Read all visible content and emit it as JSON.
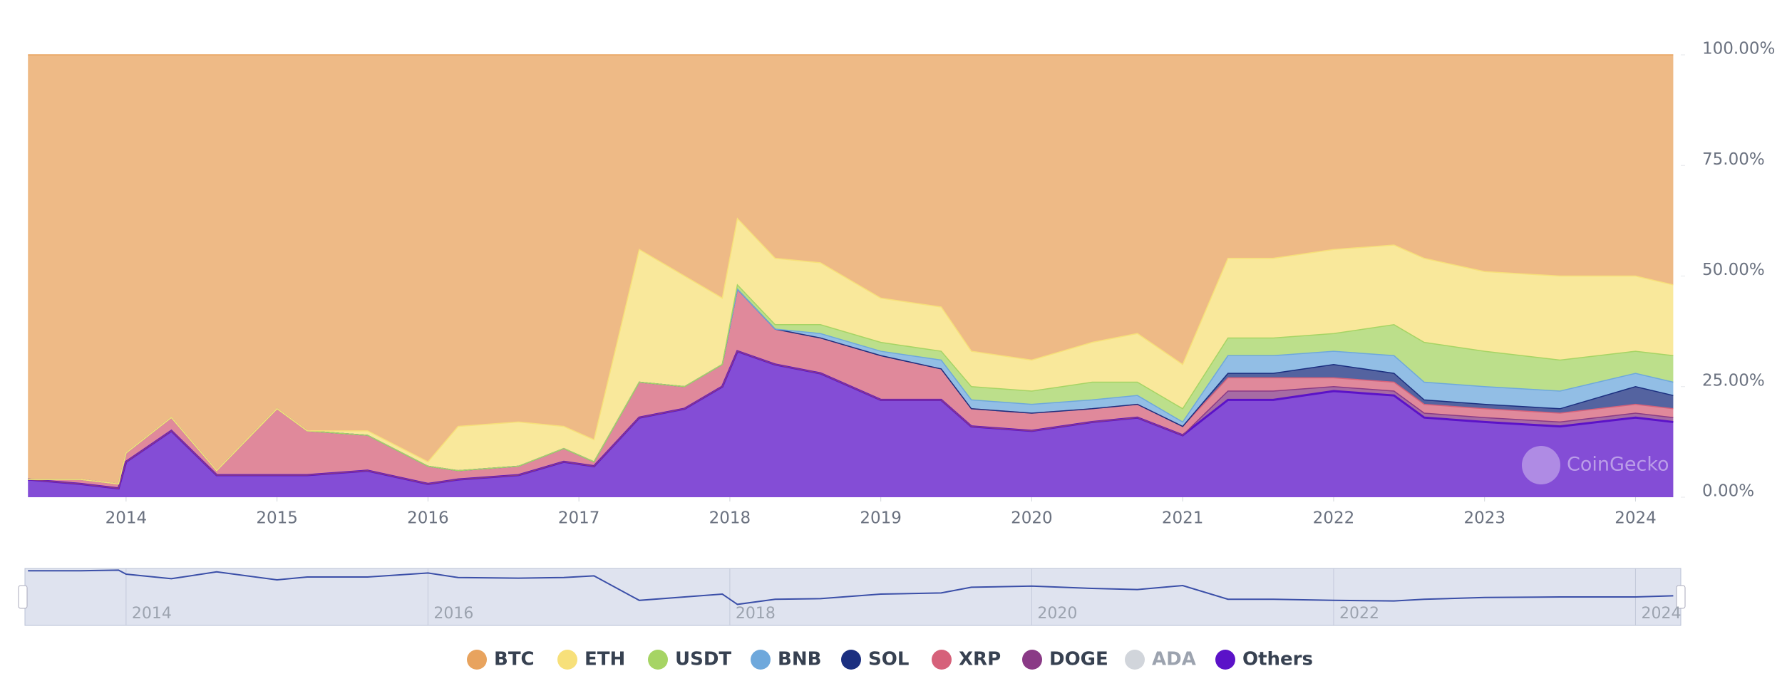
{
  "chart_data": {
    "type": "stacked-area",
    "x": [
      2013.35,
      2013.7,
      2013.95,
      2014.0,
      2014.3,
      2014.6,
      2015.0,
      2015.2,
      2015.6,
      2016.0,
      2016.2,
      2016.6,
      2016.9,
      2017.1,
      2017.4,
      2017.7,
      2017.95,
      2018.05,
      2018.3,
      2018.6,
      2019.0,
      2019.4,
      2019.6,
      2020.0,
      2020.4,
      2020.7,
      2021.0,
      2021.3,
      2021.6,
      2022.0,
      2022.4,
      2022.6,
      2023.0,
      2023.5,
      2024.0,
      2024.25
    ],
    "series": [
      {
        "name": "BTC",
        "color": "#e8a35e",
        "values": [
          96,
          96,
          97,
          90,
          82,
          94,
          80,
          85,
          85,
          92,
          84,
          83,
          84,
          87,
          44,
          50,
          55,
          37,
          46,
          47,
          55,
          57,
          67,
          69,
          65,
          63,
          70,
          46,
          46,
          44,
          43,
          46,
          49,
          50,
          50,
          52
        ]
      },
      {
        "name": "ETH",
        "color": "#f7e07a",
        "values": [
          0,
          0,
          0,
          0,
          0,
          0,
          0,
          0,
          1,
          1,
          10,
          10,
          5,
          5,
          30,
          25,
          15,
          15,
          15,
          14,
          10,
          10,
          8,
          7,
          9,
          11,
          10,
          18,
          18,
          19,
          18,
          19,
          18,
          19,
          17,
          16
        ]
      },
      {
        "name": "USDT",
        "color": "#a6d464",
        "values": [
          0,
          0,
          0,
          0,
          0,
          0,
          0,
          0,
          0,
          0,
          0,
          0,
          0,
          0,
          0,
          0,
          0,
          1,
          1,
          2,
          2,
          2,
          3,
          3,
          4,
          3,
          3,
          4,
          4,
          4,
          7,
          9,
          8,
          7,
          5,
          6
        ]
      },
      {
        "name": "BNB",
        "color": "#6ea8dc",
        "values": [
          0,
          0,
          0,
          0,
          0,
          0,
          0,
          0,
          0,
          0,
          0,
          0,
          0,
          0,
          0,
          0,
          0,
          0,
          0,
          1,
          1,
          2,
          2,
          2,
          2,
          2,
          1,
          4,
          4,
          3,
          4,
          4,
          4,
          4,
          3,
          3
        ]
      },
      {
        "name": "SOL",
        "color": "#1b2f80",
        "values": [
          0,
          0,
          0,
          0,
          0,
          0,
          0,
          0,
          0,
          0,
          0,
          0,
          0,
          0,
          0,
          0,
          0,
          0,
          0,
          0,
          0,
          0,
          0,
          0,
          0,
          0,
          0,
          1,
          1,
          3,
          2,
          1,
          1,
          1,
          4,
          3
        ]
      },
      {
        "name": "XRP",
        "color": "#d6617a",
        "values": [
          0,
          1,
          1,
          2,
          3,
          1,
          15,
          10,
          8,
          4,
          2,
          2,
          3,
          1,
          8,
          5,
          5,
          14,
          8,
          8,
          10,
          7,
          4,
          4,
          3,
          3,
          2,
          3,
          3,
          2,
          2,
          2,
          2,
          2,
          2,
          2
        ]
      },
      {
        "name": "DOGE",
        "color": "#8a3a86",
        "values": [
          0,
          0,
          0,
          0,
          0,
          0,
          0,
          0,
          0,
          0,
          0,
          0,
          0,
          0,
          0,
          0,
          0,
          0,
          0,
          0,
          0,
          0,
          0,
          0,
          0,
          0,
          0,
          2,
          2,
          1,
          1,
          1,
          1,
          1,
          1,
          1
        ]
      },
      {
        "name": "ADA",
        "color": "#cccccc",
        "hidden": true,
        "values": [
          null,
          null,
          null,
          null,
          null,
          null,
          null,
          null,
          null,
          null,
          null,
          null,
          null,
          null,
          null,
          null,
          null,
          null,
          null,
          null,
          null,
          null,
          null,
          null,
          null,
          null,
          null,
          null,
          null,
          null,
          null,
          null,
          null,
          null,
          null,
          null
        ]
      },
      {
        "name": "Others",
        "color": "#5b12c8",
        "values": [
          4,
          3,
          2,
          8,
          15,
          5,
          5,
          5,
          6,
          3,
          4,
          5,
          8,
          7,
          18,
          20,
          25,
          33,
          30,
          28,
          22,
          22,
          16,
          15,
          17,
          18,
          14,
          22,
          22,
          24,
          23,
          18,
          17,
          16,
          18,
          17
        ]
      }
    ],
    "xlim": [
      2013.33,
      2024.3
    ],
    "xticks": [
      2014,
      2015,
      2016,
      2017,
      2018,
      2019,
      2020,
      2021,
      2022,
      2023,
      2024
    ],
    "ylim": [
      0,
      100
    ],
    "yticks": [
      {
        "value": 0,
        "label": "0.00%"
      },
      {
        "value": 25,
        "label": "25.00%"
      },
      {
        "value": 50,
        "label": "50.00%"
      },
      {
        "value": 75,
        "label": "75.00%"
      },
      {
        "value": 100,
        "label": "100.00%"
      }
    ],
    "navigator_xticks": [
      2014,
      2016,
      2018,
      2020,
      2022,
      2024
    ],
    "watermark": "CoinGecko"
  }
}
